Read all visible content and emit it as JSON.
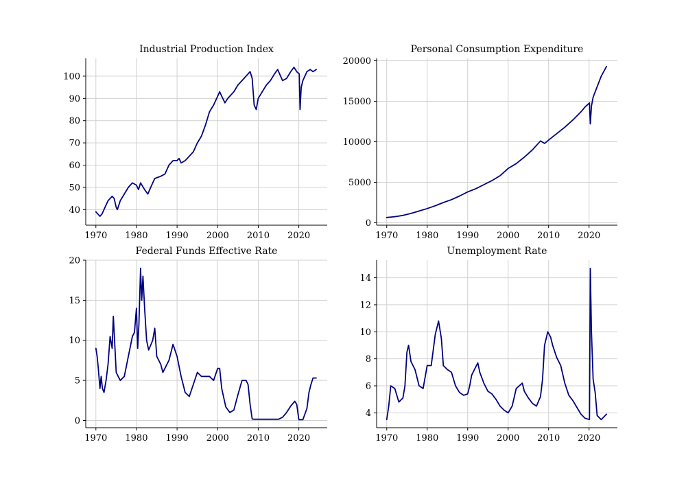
{
  "colors": {
    "series": "#000080",
    "grid": "#d0d0d0",
    "axis": "#000000"
  },
  "chart_data": [
    {
      "type": "line",
      "title": "Industrial Production Index",
      "xlim": [
        1967.5,
        2027
      ],
      "ylim": [
        33,
        108
      ],
      "xticks": [
        1970,
        1980,
        1990,
        2000,
        2010,
        2020
      ],
      "yticks": [
        40,
        50,
        60,
        70,
        80,
        90,
        100
      ],
      "grid": true,
      "series": [
        {
          "x": [
            1970,
            1970.5,
            1971,
            1971.5,
            1972,
            1973,
            1974,
            1974.5,
            1975,
            1975.3,
            1976,
            1977,
            1978,
            1979,
            1980,
            1980.5,
            1981,
            1982,
            1982.8,
            1983.5,
            1984.5,
            1986,
            1987,
            1988,
            1989,
            1990,
            1990.5,
            1991,
            1992,
            1993,
            1994,
            1995,
            1996,
            1997,
            1998,
            1999,
            2000,
            2000.5,
            2001,
            2001.8,
            2002.5,
            2003,
            2004,
            2005,
            2006,
            2007,
            2008,
            2008.5,
            2009,
            2009.5,
            2010,
            2011,
            2012,
            2013,
            2014,
            2014.8,
            2015.5,
            2016,
            2017,
            2018,
            2018.8,
            2019.5,
            2020.1,
            2020.3,
            2020.6,
            2021,
            2022,
            2022.8,
            2023.5,
            2024.3
          ],
          "y": [
            39,
            38,
            37,
            38,
            40,
            44,
            46,
            45,
            41,
            40,
            44,
            47,
            50,
            52,
            51,
            49,
            52,
            49,
            47,
            50,
            54,
            55,
            56,
            60,
            62,
            62,
            63,
            61,
            62,
            64,
            66,
            70,
            73,
            78,
            84,
            87,
            91,
            93,
            91,
            88,
            90,
            91,
            93,
            96,
            98,
            100,
            102,
            99,
            87,
            85,
            90,
            93,
            96,
            98,
            101,
            103,
            100,
            98,
            99,
            102,
            104,
            102,
            101,
            85,
            95,
            98,
            102,
            103,
            102,
            103
          ]
        }
      ]
    },
    {
      "type": "line",
      "title": "Personal Consumption Expenditure",
      "xlim": [
        1967.5,
        2027
      ],
      "ylim": [
        -300,
        20300
      ],
      "xticks": [
        1970,
        1980,
        1990,
        2000,
        2010,
        2020
      ],
      "yticks": [
        0,
        5000,
        10000,
        15000,
        20000
      ],
      "grid": true,
      "series": [
        {
          "x": [
            1970,
            1972,
            1974,
            1976,
            1978,
            1980,
            1982,
            1984,
            1986,
            1988,
            1990,
            1992,
            1994,
            1996,
            1998,
            2000,
            2002,
            2004,
            2006,
            2008,
            2009,
            2010,
            2012,
            2014,
            2016,
            2018,
            2019,
            2020.1,
            2020.3,
            2020.6,
            2021,
            2022,
            2023,
            2024.3
          ],
          "y": [
            650,
            750,
            900,
            1150,
            1450,
            1750,
            2100,
            2500,
            2850,
            3300,
            3800,
            4200,
            4700,
            5200,
            5800,
            6700,
            7300,
            8100,
            9000,
            10100,
            9800,
            10200,
            11000,
            11800,
            12700,
            13700,
            14300,
            14800,
            12200,
            14400,
            15500,
            16800,
            18100,
            19300
          ]
        }
      ]
    },
    {
      "type": "line",
      "title": "Federal Funds Effective Rate",
      "xlim": [
        1967.5,
        2027
      ],
      "ylim": [
        -0.9,
        20
      ],
      "xticks": [
        1970,
        1980,
        1990,
        2000,
        2010,
        2020
      ],
      "yticks": [
        0,
        5,
        10,
        15,
        20
      ],
      "grid": true,
      "series": [
        {
          "x": [
            1970,
            1970.3,
            1970.6,
            1971,
            1971.3,
            1971.6,
            1972,
            1972.5,
            1973,
            1973.5,
            1974,
            1974.3,
            1974.6,
            1975,
            1975.5,
            1976,
            1977,
            1978,
            1979,
            1979.5,
            1980,
            1980.3,
            1980.6,
            1981,
            1981.3,
            1981.6,
            1982,
            1982.5,
            1983,
            1984,
            1984.5,
            1985,
            1986,
            1986.5,
            1987,
            1988,
            1989,
            1990,
            1991,
            1992,
            1993,
            1994,
            1995,
            1996,
            1997,
            1998,
            1999,
            2000,
            2000.5,
            2001,
            2002,
            2003,
            2004,
            2005,
            2006,
            2007,
            2007.5,
            2008,
            2008.5,
            2009,
            2012,
            2015,
            2016,
            2017,
            2018,
            2019,
            2019.5,
            2020,
            2020.3,
            2021,
            2022,
            2022.5,
            2023,
            2023.5,
            2024.3
          ],
          "y": [
            9,
            8,
            6.5,
            4,
            5.5,
            4,
            3.5,
            5,
            7,
            10.5,
            9,
            13,
            10,
            6,
            5.5,
            5,
            5.5,
            8,
            10.5,
            11,
            14,
            9,
            12,
            19,
            15,
            18,
            14,
            10,
            8.8,
            10,
            11.5,
            8,
            7,
            6,
            6.5,
            7.5,
            9.5,
            8,
            5.5,
            3.5,
            3,
            4.5,
            6,
            5.5,
            5.5,
            5.5,
            5,
            6.5,
            6.5,
            4,
            1.7,
            1,
            1.3,
            3.2,
            5,
            5,
            4.5,
            2,
            0.2,
            0.15,
            0.15,
            0.15,
            0.4,
            1,
            1.8,
            2.4,
            2,
            0.1,
            0.1,
            0.1,
            1.5,
            3.5,
            4.5,
            5.3,
            5.3
          ]
        }
      ]
    },
    {
      "type": "line",
      "title": "Unemployment Rate",
      "xlim": [
        1967.5,
        2027
      ],
      "ylim": [
        2.9,
        15.3
      ],
      "xticks": [
        1970,
        1980,
        1990,
        2000,
        2010,
        2020
      ],
      "yticks": [
        4,
        6,
        8,
        10,
        12,
        14
      ],
      "grid": true,
      "series": [
        {
          "x": [
            1970,
            1970.5,
            1971,
            1972,
            1973,
            1974,
            1974.5,
            1975,
            1975.4,
            1976,
            1977,
            1978,
            1979,
            1980,
            1980.5,
            1981,
            1982,
            1982.8,
            1983.5,
            1984,
            1985,
            1986,
            1987,
            1988,
            1989,
            1990,
            1990.5,
            1991,
            1992.5,
            1993,
            1994,
            1995,
            1996,
            1997,
            1998,
            1999,
            2000,
            2001,
            2002,
            2003.5,
            2004,
            2005,
            2006,
            2007,
            2008,
            2008.5,
            2009,
            2009.8,
            2010.5,
            2011,
            2012,
            2013,
            2014,
            2015,
            2016,
            2017,
            2018,
            2019,
            2020.1,
            2020.3,
            2020.6,
            2021,
            2021.5,
            2022,
            2023,
            2024.3
          ],
          "y": [
            3.5,
            4.5,
            6,
            5.8,
            4.8,
            5.1,
            6,
            8.5,
            9,
            7.8,
            7.2,
            6,
            5.8,
            7.5,
            7.5,
            7.5,
            9.8,
            10.8,
            9.5,
            7.5,
            7.2,
            7,
            6,
            5.5,
            5.3,
            5.4,
            6,
            6.8,
            7.7,
            7,
            6.2,
            5.6,
            5.4,
            5,
            4.5,
            4.2,
            4,
            4.5,
            5.8,
            6.2,
            5.6,
            5.1,
            4.7,
            4.5,
            5.2,
            6.5,
            9,
            10,
            9.6,
            9,
            8.1,
            7.5,
            6.2,
            5.3,
            4.9,
            4.4,
            3.9,
            3.6,
            3.5,
            14.7,
            10,
            6.5,
            5.5,
            3.8,
            3.5,
            3.9
          ]
        }
      ]
    }
  ]
}
